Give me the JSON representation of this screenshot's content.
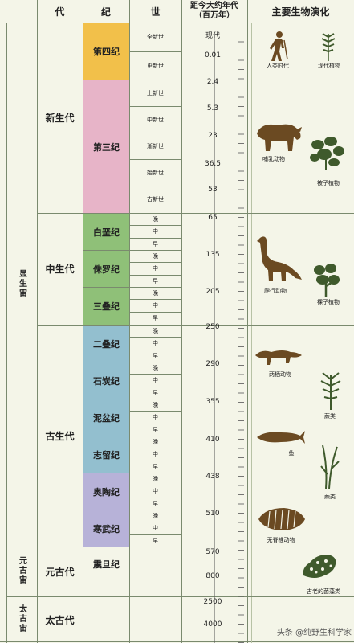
{
  "header": {
    "eon": "",
    "era": "代",
    "period": "纪",
    "epoch": "世",
    "age_line1": "距今大约年代",
    "age_line2": "（百万年）",
    "life": "主要生物演化"
  },
  "eons": [
    "显生宙",
    "元古宙",
    "太古宙"
  ],
  "eras": [
    "新生代",
    "中生代",
    "古生代",
    "元古代",
    "太古代"
  ],
  "periods": [
    "第四纪",
    "第三纪",
    "白垩纪",
    "侏罗纪",
    "三叠纪",
    "二叠纪",
    "石炭纪",
    "泥盆纪",
    "志留纪",
    "奥陶纪",
    "寒武纪",
    "震旦纪"
  ],
  "epochs": [
    "全新世",
    "更新世",
    "上新世",
    "中新世",
    "渐新世",
    "始新世",
    "古新世"
  ],
  "subdivisions": [
    "晚",
    "中",
    "早"
  ],
  "ages": [
    "现代",
    "0.01",
    "2.4",
    "5.3",
    "23",
    "36.5",
    "53",
    "65",
    "135",
    "205",
    "250",
    "290",
    "355",
    "410",
    "438",
    "510",
    "570",
    "800",
    "2500",
    "4000"
  ],
  "life": [
    "人类时代",
    "现代植物",
    "哺乳动物",
    "被子植物",
    "爬行动物",
    "裸子植物",
    "两栖动物",
    "蕨类",
    "鱼",
    "蕨类",
    "无脊椎动物",
    "古老的菌藻类"
  ],
  "colors": {
    "background": "#f4f5e8",
    "quaternary": "#f2c04a",
    "tertiary": "#e7b4c8",
    "mesozoic": "#8fc078",
    "paleozoic": "#93bfcf",
    "early_paleozoic": "#b7b2d8",
    "sinian": "#f2f3e4",
    "fossil_brown": "#6b4a22",
    "plant_green": "#3f5a2c"
  },
  "watermark": "头条 @纯野生科学家"
}
